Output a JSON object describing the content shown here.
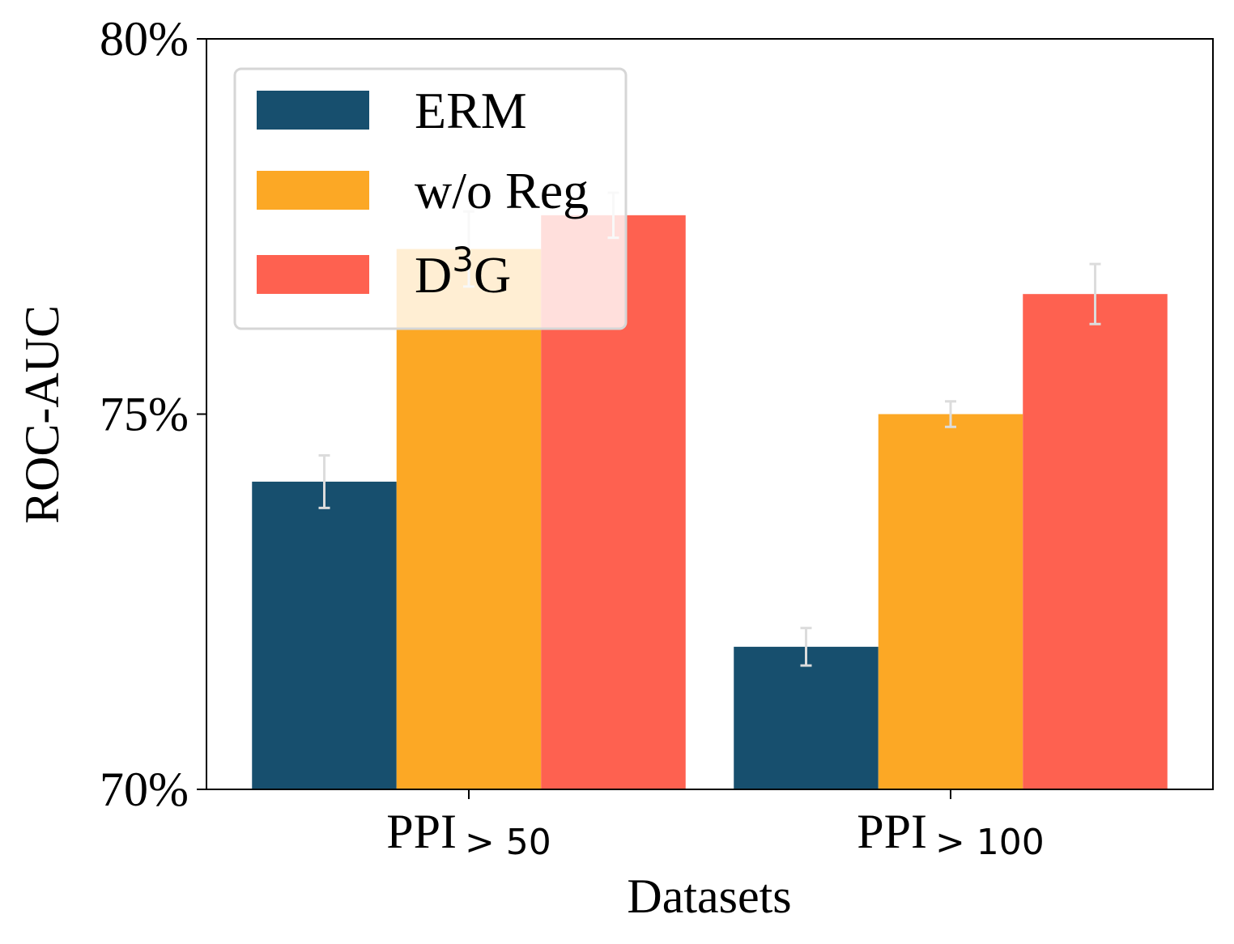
{
  "chart_data": {
    "type": "bar",
    "title": "",
    "xlabel": "Datasets",
    "ylabel": "ROC-AUC",
    "ylim": [
      70,
      80
    ],
    "yticks": [
      {
        "value": 70,
        "label": "70%"
      },
      {
        "value": 75,
        "label": "75%"
      },
      {
        "value": 80,
        "label": "80%"
      }
    ],
    "categories": [
      {
        "main": "PPI",
        "sub": "> 50"
      },
      {
        "main": "PPI",
        "sub": "> 100"
      }
    ],
    "legend_position": "top-left",
    "series": [
      {
        "name": "ERM",
        "color": "#174f6e",
        "values": [
          74.1,
          71.9
        ],
        "errors": [
          0.35,
          0.25
        ]
      },
      {
        "name": "w/o Reg",
        "color": "#fca825",
        "values": [
          77.2,
          75.0
        ],
        "errors": [
          0.5,
          0.17
        ]
      },
      {
        "name": "D",
        "name_sup": "3",
        "name_suffix": "G",
        "color": "#fe6150",
        "values": [
          77.65,
          76.6
        ],
        "errors": [
          0.3,
          0.4
        ]
      }
    ],
    "errorbar_color": "#dcdcdc"
  }
}
